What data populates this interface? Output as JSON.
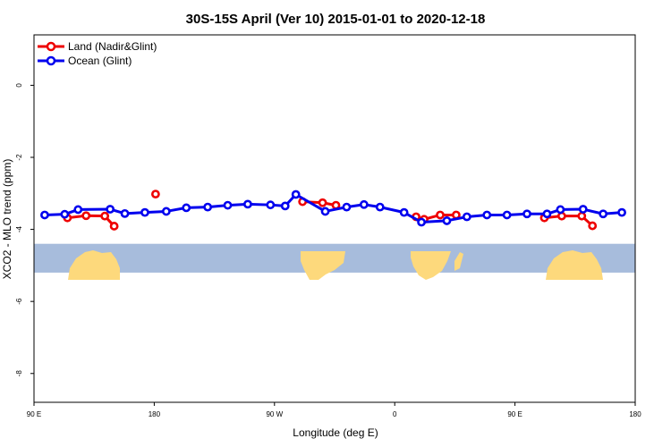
{
  "chart_data": {
    "type": "line",
    "title": "30S-15S April (Ver 10)   2015-01-01 to 2020-12-18",
    "xlabel": "Longitude (deg E)",
    "ylabel": "XCO2 - MLO trend (ppm)",
    "xlim": [
      90,
      540
    ],
    "ylim": [
      -8.8,
      1.4
    ],
    "x_ticks": [
      {
        "value": 90,
        "label": "90 E"
      },
      {
        "value": 180,
        "label": "180"
      },
      {
        "value": 270,
        "label": "90 W"
      },
      {
        "value": 360,
        "label": "0"
      },
      {
        "value": 450,
        "label": "90 E"
      },
      {
        "value": 540,
        "label": "180"
      }
    ],
    "y_ticks": [
      {
        "value": 0,
        "label": "0"
      },
      {
        "value": -2,
        "label": "-2"
      },
      {
        "value": -4,
        "label": "-4"
      },
      {
        "value": -6,
        "label": "-6"
      },
      {
        "value": -8,
        "label": "-8"
      }
    ],
    "legend_position": "top-left",
    "map_strip": {
      "y_top": -4.4,
      "y_bottom": -5.2,
      "ocean_color": "#a7bcdc",
      "land_color": "#fdd97c"
    },
    "series": [
      {
        "name": "Land (Nadir&Glint)",
        "color": "#ee0000",
        "segments": [
          [
            [
              115,
              -3.68
            ],
            [
              129,
              -3.62
            ],
            [
              143,
              -3.63
            ],
            [
              150,
              -3.91
            ]
          ],
          [
            [
              181,
              -3.02
            ]
          ],
          [
            [
              291,
              -3.23
            ],
            [
              306,
              -3.26
            ],
            [
              316,
              -3.33
            ]
          ],
          [
            [
              376,
              -3.65
            ],
            [
              382,
              -3.72
            ],
            [
              394,
              -3.6
            ],
            [
              406,
              -3.6
            ]
          ],
          [
            [
              472,
              -3.68
            ],
            [
              485,
              -3.63
            ],
            [
              500,
              -3.63
            ],
            [
              508,
              -3.9
            ]
          ]
        ]
      },
      {
        "name": "Ocean (Glint)",
        "color": "#0000ee",
        "segments": [
          [
            [
              98,
              -3.6
            ],
            [
              113,
              -3.58
            ],
            [
              123,
              -3.45
            ],
            [
              147,
              -3.44
            ],
            [
              158,
              -3.56
            ],
            [
              173,
              -3.53
            ],
            [
              189,
              -3.5
            ],
            [
              204,
              -3.4
            ],
            [
              220,
              -3.38
            ],
            [
              235,
              -3.33
            ],
            [
              250,
              -3.3
            ],
            [
              267,
              -3.32
            ],
            [
              278,
              -3.35
            ],
            [
              286,
              -3.03
            ],
            [
              308,
              -3.5
            ],
            [
              324,
              -3.38
            ],
            [
              337,
              -3.31
            ],
            [
              349,
              -3.38
            ],
            [
              367,
              -3.53
            ],
            [
              380,
              -3.8
            ],
            [
              399,
              -3.76
            ],
            [
              414,
              -3.65
            ],
            [
              429,
              -3.6
            ],
            [
              444,
              -3.6
            ],
            [
              459,
              -3.57
            ],
            [
              474,
              -3.57
            ],
            [
              484,
              -3.45
            ],
            [
              501,
              -3.44
            ],
            [
              516,
              -3.57
            ],
            [
              530,
              -3.53
            ]
          ]
        ]
      }
    ]
  }
}
